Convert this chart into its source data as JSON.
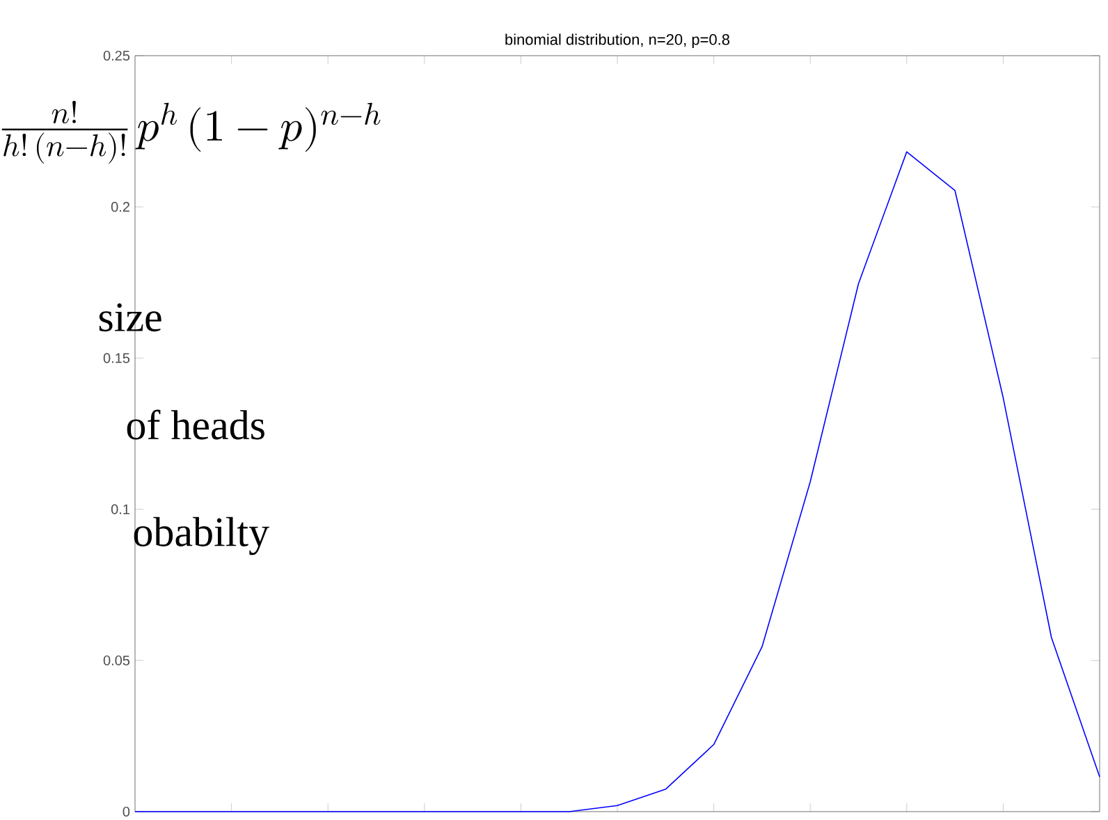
{
  "chart_data": {
    "type": "line",
    "title": "binomial distribution, n=20, p=0.8",
    "categories": [
      null,
      null,
      null,
      null,
      null,
      null,
      null,
      null,
      null,
      null,
      null,
      null,
      null,
      null,
      null,
      null,
      null,
      null,
      null,
      null,
      null
    ],
    "series": [
      {
        "color": "#0000ff",
        "values": [
          0,
          0,
          0,
          0,
          0,
          0,
          0,
          0,
          0,
          0,
          0.002,
          0.0074,
          0.0222,
          0.0545,
          0.1091,
          0.1746,
          0.2182,
          0.2054,
          0.1369,
          0.0576,
          0.0115
        ]
      }
    ],
    "ylim": [
      0,
      0.25
    ],
    "yticks": [
      {
        "value": 0,
        "label": "0"
      },
      {
        "value": 0.05,
        "label": "0.05"
      },
      {
        "value": 0.1,
        "label": "0.1"
      },
      {
        "value": 0.15,
        "label": "0.15"
      },
      {
        "value": 0.2,
        "label": "0.2"
      },
      {
        "value": 0.25,
        "label": "0.25"
      }
    ],
    "tick_labels": "y",
    "grid": false,
    "marker": "none",
    "line_style": "solid",
    "annotations": [
      "\\frac{n!}{h!\\,(n-h)!}\\,p^{h}\\,(1-p)^{n-h}",
      "size",
      "of  heads",
      "obabilty"
    ]
  }
}
